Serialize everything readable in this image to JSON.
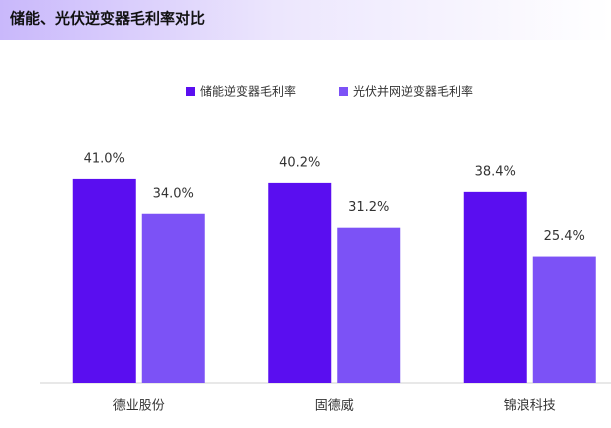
{
  "chart_data": {
    "type": "bar",
    "title": "储能、光伏逆变器毛利率对比",
    "categories": [
      "德业股份",
      "固德威",
      "锦浪科技"
    ],
    "series": [
      {
        "name": "储能逆变器毛利率",
        "color": "#5a0ef0",
        "values": [
          41.0,
          40.2,
          38.4
        ],
        "value_labels": [
          "41.0%",
          "40.2%",
          "38.4%"
        ]
      },
      {
        "name": "光伏并网逆变器毛利率",
        "color": "#7c52f6",
        "values": [
          34.0,
          31.2,
          25.4
        ],
        "value_labels": [
          "34.0%",
          "31.2%",
          "25.4%"
        ]
      }
    ],
    "ylim": [
      0,
      45
    ],
    "legend": "top"
  }
}
